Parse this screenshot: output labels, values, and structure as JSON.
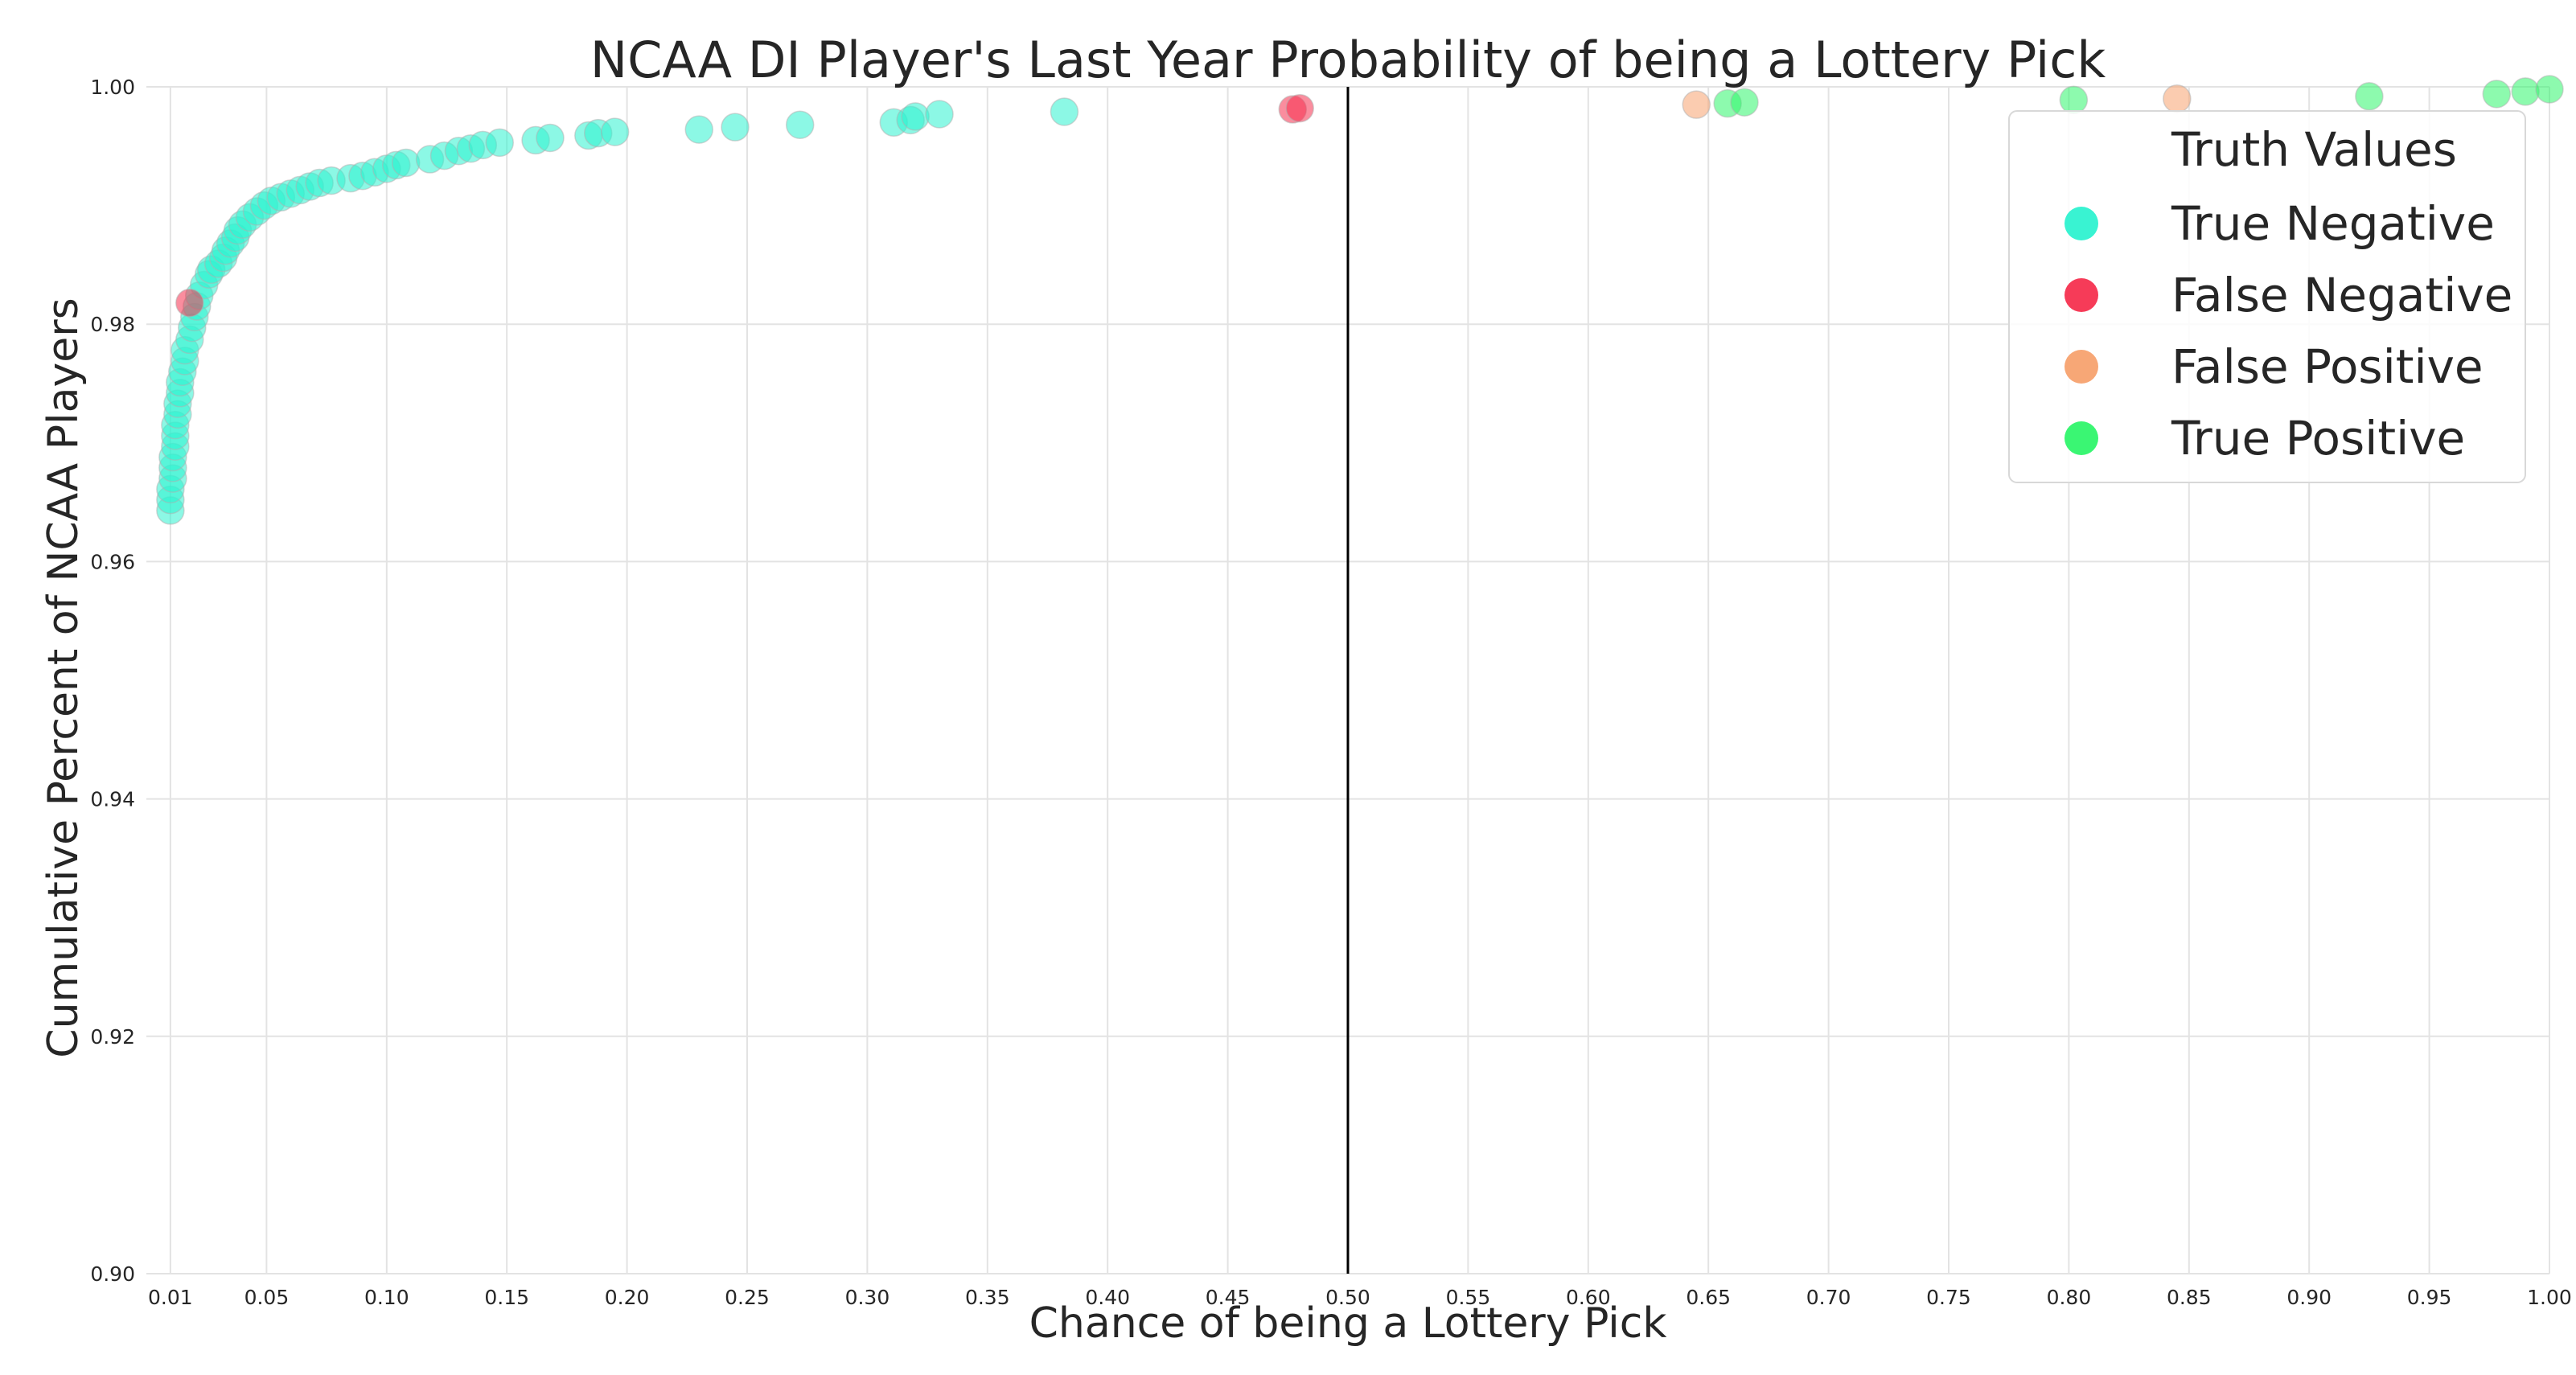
{
  "chart_data": {
    "type": "scatter",
    "title": "NCAA DI Player's Last Year Probability of being a Lottery Pick",
    "xlabel": "Chance of being a Lottery Pick",
    "ylabel": "Cumulative Percent of NCAA Players",
    "xlim": [
      0.0,
      1.0
    ],
    "ylim": [
      0.9,
      1.0
    ],
    "x_ticks": [
      "0.01",
      "0.05",
      "0.10",
      "0.15",
      "0.20",
      "0.25",
      "0.30",
      "0.35",
      "0.40",
      "0.45",
      "0.50",
      "0.55",
      "0.60",
      "0.65",
      "0.70",
      "0.75",
      "0.80",
      "0.85",
      "0.90",
      "0.95",
      "1.00"
    ],
    "y_ticks": [
      "0.90",
      "0.92",
      "0.94",
      "0.96",
      "0.98",
      "1.00"
    ],
    "threshold_line_x": 0.5,
    "grid": true,
    "legend": {
      "title": "Truth Values",
      "placement": "top-right",
      "entries": [
        "True Negative",
        "False Negative",
        "False Positive",
        "True Positive"
      ]
    },
    "series": [
      {
        "name": "True Negative",
        "color": "#2ef2d0",
        "points": [
          [
            0.01,
            0.9643
          ],
          [
            0.01,
            0.9652
          ],
          [
            0.01,
            0.9661
          ],
          [
            0.011,
            0.967
          ],
          [
            0.011,
            0.9679
          ],
          [
            0.011,
            0.9688
          ],
          [
            0.012,
            0.9697
          ],
          [
            0.012,
            0.9706
          ],
          [
            0.012,
            0.9715
          ],
          [
            0.013,
            0.9724
          ],
          [
            0.013,
            0.9733
          ],
          [
            0.014,
            0.9742
          ],
          [
            0.014,
            0.9751
          ],
          [
            0.015,
            0.976
          ],
          [
            0.016,
            0.9769
          ],
          [
            0.016,
            0.9778
          ],
          [
            0.018,
            0.9787
          ],
          [
            0.019,
            0.9797
          ],
          [
            0.02,
            0.9806
          ],
          [
            0.021,
            0.9815
          ],
          [
            0.022,
            0.9824
          ],
          [
            0.024,
            0.9833
          ],
          [
            0.026,
            0.9842
          ],
          [
            0.027,
            0.9846
          ],
          [
            0.03,
            0.9851
          ],
          [
            0.032,
            0.9856
          ],
          [
            0.033,
            0.9862
          ],
          [
            0.035,
            0.9868
          ],
          [
            0.037,
            0.9873
          ],
          [
            0.038,
            0.9879
          ],
          [
            0.04,
            0.9884
          ],
          [
            0.043,
            0.989
          ],
          [
            0.046,
            0.9895
          ],
          [
            0.049,
            0.99
          ],
          [
            0.052,
            0.9904
          ],
          [
            0.056,
            0.9907
          ],
          [
            0.06,
            0.991
          ],
          [
            0.064,
            0.9913
          ],
          [
            0.068,
            0.9916
          ],
          [
            0.072,
            0.9919
          ],
          [
            0.077,
            0.9921
          ],
          [
            0.085,
            0.9923
          ],
          [
            0.09,
            0.9925
          ],
          [
            0.095,
            0.9928
          ],
          [
            0.1,
            0.9931
          ],
          [
            0.104,
            0.9934
          ],
          [
            0.108,
            0.9936
          ],
          [
            0.118,
            0.9939
          ],
          [
            0.124,
            0.9942
          ],
          [
            0.13,
            0.9946
          ],
          [
            0.135,
            0.9948
          ],
          [
            0.14,
            0.9951
          ],
          [
            0.147,
            0.9953
          ],
          [
            0.162,
            0.9955
          ],
          [
            0.168,
            0.9957
          ],
          [
            0.184,
            0.9959
          ],
          [
            0.188,
            0.9961
          ],
          [
            0.195,
            0.9962
          ],
          [
            0.23,
            0.9964
          ],
          [
            0.245,
            0.9966
          ],
          [
            0.272,
            0.9968
          ],
          [
            0.311,
            0.997
          ],
          [
            0.318,
            0.9972
          ],
          [
            0.32,
            0.9975
          ],
          [
            0.33,
            0.9977
          ],
          [
            0.382,
            0.9979
          ]
        ]
      },
      {
        "name": "False Negative",
        "color": "#f5304f",
        "points": [
          [
            0.018,
            0.9818
          ],
          [
            0.477,
            0.9981
          ],
          [
            0.48,
            0.9982
          ]
        ]
      },
      {
        "name": "False Positive",
        "color": "#f7a26f",
        "points": [
          [
            0.645,
            0.9985
          ],
          [
            0.845,
            0.999
          ]
        ]
      },
      {
        "name": "True Positive",
        "color": "#2ff56c",
        "points": [
          [
            0.658,
            0.9986
          ],
          [
            0.665,
            0.9987
          ],
          [
            0.802,
            0.9989
          ],
          [
            0.925,
            0.9992
          ],
          [
            0.978,
            0.9994
          ],
          [
            0.99,
            0.9996
          ],
          [
            1.0,
            0.9998
          ]
        ]
      }
    ]
  }
}
